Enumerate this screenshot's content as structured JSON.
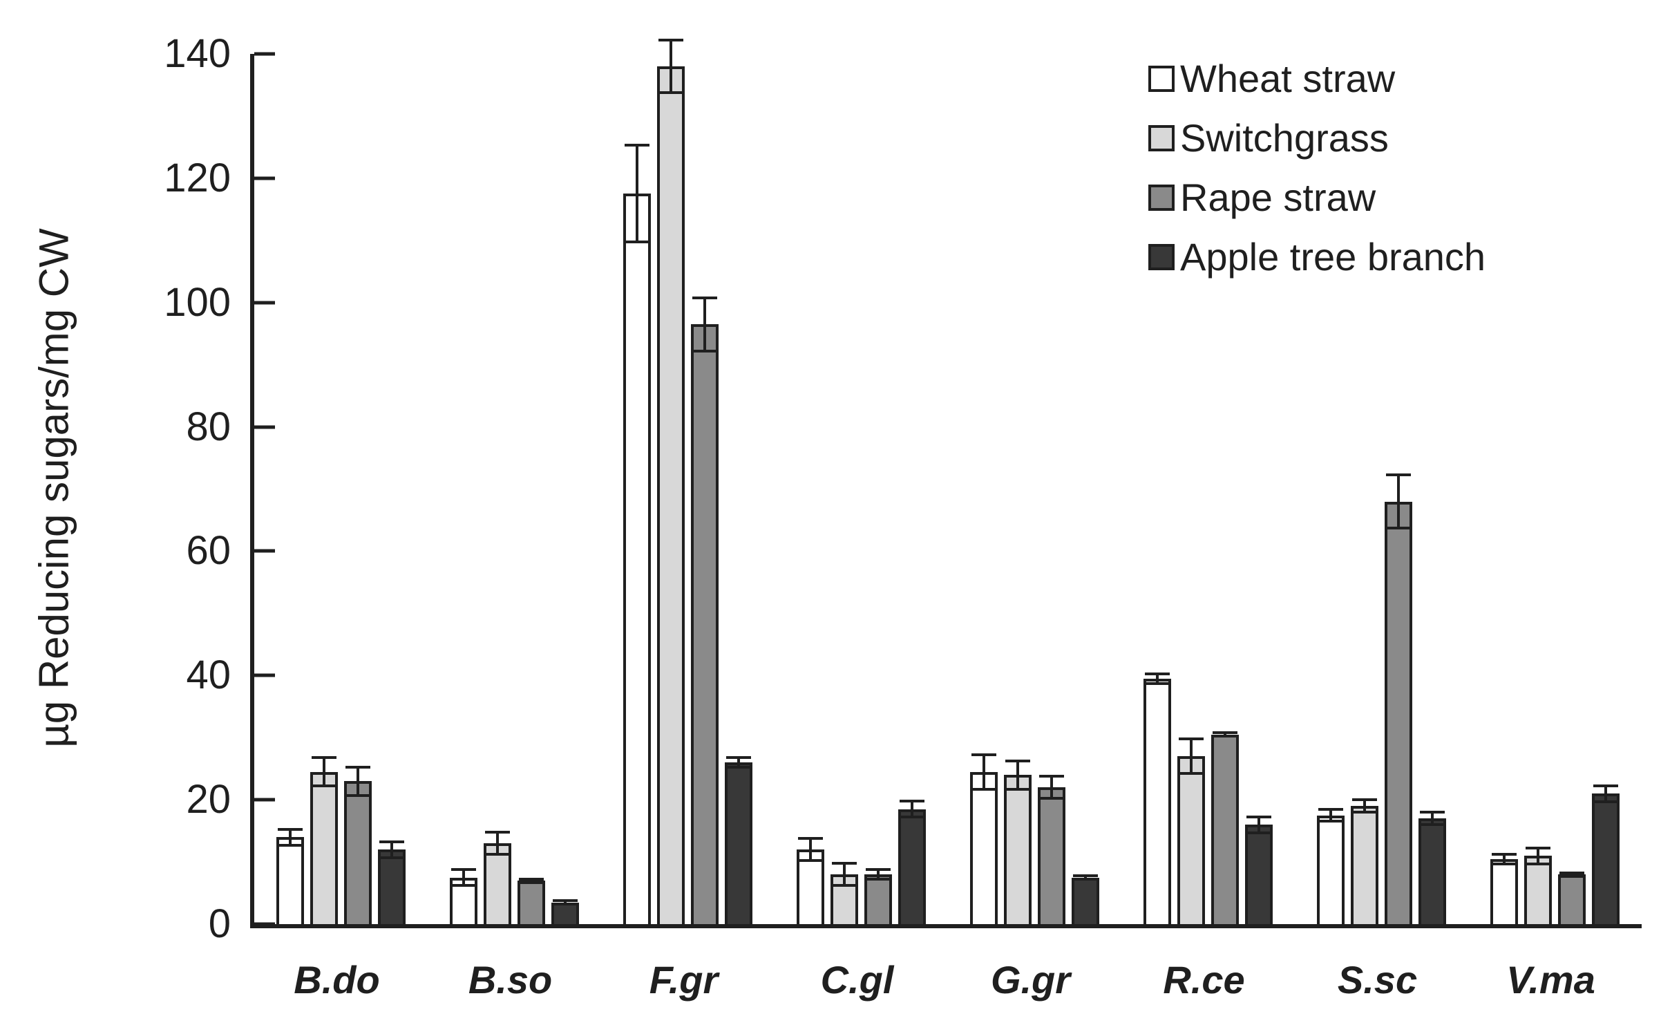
{
  "chart_data": {
    "type": "bar",
    "title": "",
    "xlabel": "",
    "ylabel": "µg Reducing sugars/mg CW",
    "ylim": [
      0,
      140
    ],
    "y_ticks": [
      0,
      20,
      40,
      60,
      80,
      100,
      120,
      140
    ],
    "grid": false,
    "legend_position": "top-right",
    "axis_color": "#1f1f1f",
    "categories": [
      "B.do",
      "B.so",
      "F.gr",
      "C.gl",
      "G.gr",
      "R.ce",
      "S.sc",
      "V.ma"
    ],
    "series": [
      {
        "name": "Wheat straw",
        "fill": "#ffffff",
        "values": [
          14,
          7.5,
          117.5,
          12,
          24.5,
          39.5,
          17.5,
          10.5
        ],
        "errors": [
          1.5,
          1.5,
          8,
          2,
          3,
          1,
          1.2,
          1
        ]
      },
      {
        "name": "Switchgrass",
        "fill": "#d8d8d8",
        "values": [
          24.5,
          13,
          138,
          8,
          24,
          27,
          19,
          11
        ],
        "errors": [
          2.5,
          2,
          4.5,
          2,
          2.5,
          3,
          1.2,
          1.5
        ]
      },
      {
        "name": "Rape straw",
        "fill": "#8a8a8a",
        "values": [
          23,
          7,
          96.5,
          8,
          22,
          30.5,
          68,
          8
        ],
        "errors": [
          2.5,
          0.5,
          4.5,
          1,
          2,
          0.5,
          4.5,
          0.5
        ]
      },
      {
        "name": "Apple tree branch",
        "fill": "#383838",
        "values": [
          12,
          3.5,
          26,
          18.5,
          7.5,
          16,
          17,
          21
        ],
        "errors": [
          1.5,
          0.5,
          1,
          1.5,
          0.5,
          1.5,
          1.2,
          1.5
        ]
      }
    ]
  }
}
